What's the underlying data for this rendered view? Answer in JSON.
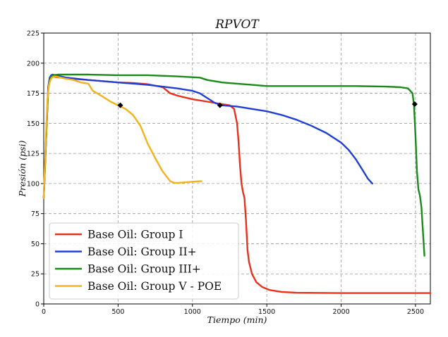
{
  "chart_data": {
    "type": "line",
    "title": "RPVOT",
    "xlabel": "Tiempo (min)",
    "ylabel": "Presión (psi)",
    "xlim": [
      0,
      2600
    ],
    "ylim": [
      0,
      225
    ],
    "x_ticks": [
      0,
      500,
      1000,
      1500,
      2000,
      2500
    ],
    "y_ticks": [
      0,
      25,
      50,
      75,
      100,
      125,
      150,
      175,
      200,
      225
    ],
    "grid": true,
    "legend_position": "lower-left",
    "series": [
      {
        "name": "Base Oil: Group I",
        "color": "#e8301c",
        "x": [
          0,
          20,
          30,
          40,
          50,
          60,
          80,
          120,
          200,
          300,
          400,
          500,
          600,
          700,
          800,
          850,
          900,
          1000,
          1100,
          1200,
          1250,
          1280,
          1300,
          1310,
          1320,
          1330,
          1340,
          1350,
          1360,
          1370,
          1380,
          1400,
          1430,
          1470,
          1520,
          1600,
          1700,
          2000,
          2300,
          2600
        ],
        "y": [
          88,
          150,
          178,
          186,
          188,
          189,
          188.5,
          188,
          187,
          186,
          185,
          184,
          183.5,
          182.5,
          180,
          175,
          173,
          170,
          168,
          166,
          165,
          162,
          150,
          135,
          115,
          100,
          93,
          88,
          70,
          45,
          35,
          25,
          18,
          14,
          11.5,
          10,
          9.3,
          9,
          9,
          9
        ]
      },
      {
        "name": "Base Oil: Group II+",
        "color": "#1f3fd4",
        "x": [
          0,
          20,
          30,
          40,
          50,
          60,
          80,
          150,
          300,
          500,
          700,
          900,
          1000,
          1050,
          1100,
          1150,
          1200,
          1300,
          1400,
          1500,
          1600,
          1700,
          1800,
          1900,
          2000,
          2050,
          2100,
          2150,
          2180,
          2210
        ],
        "y": [
          88,
          150,
          180,
          188,
          190,
          190.5,
          190,
          188,
          186,
          184,
          182,
          179,
          177,
          175,
          171,
          167,
          165,
          164,
          162,
          160,
          157,
          153,
          148,
          142,
          134,
          128,
          120,
          110,
          104,
          100
        ]
      },
      {
        "name": "Base Oil: Group III+",
        "color": "#1a8a1a",
        "x": [
          0,
          20,
          30,
          40,
          50,
          60,
          100,
          200,
          300,
          500,
          700,
          900,
          1050,
          1100,
          1200,
          1300,
          1400,
          1500,
          1700,
          1900,
          2100,
          2300,
          2400,
          2450,
          2480,
          2490,
          2500,
          2510,
          2520,
          2530,
          2540,
          2550,
          2560
        ],
        "y": [
          88,
          150,
          178,
          186,
          189,
          190,
          190.5,
          190.5,
          190.5,
          190,
          190,
          189,
          188,
          186,
          184,
          183,
          182,
          181,
          181,
          181,
          181,
          180.5,
          180,
          179,
          175,
          165,
          140,
          110,
          95,
          90,
          80,
          60,
          40
        ]
      },
      {
        "name": "Base Oil: Group V - POE",
        "color": "#f5b21a",
        "x": [
          0,
          15,
          25,
          35,
          45,
          55,
          70,
          100,
          150,
          200,
          250,
          300,
          330,
          400,
          450,
          500,
          550,
          600,
          650,
          700,
          750,
          800,
          850,
          880,
          900,
          950,
          1000,
          1060
        ],
        "y": [
          88,
          140,
          170,
          182,
          186,
          188,
          189,
          188.5,
          187,
          186,
          184,
          183,
          177,
          172,
          168,
          165,
          162,
          157,
          148,
          133,
          121,
          110,
          102,
          100.5,
          100.5,
          101,
          101.5,
          102
        ]
      }
    ],
    "markers": {
      "shape": "diamond",
      "color": "#000000",
      "points": [
        {
          "x": 515,
          "y": 165
        },
        {
          "x": 1185,
          "y": 165
        },
        {
          "x": 2495,
          "y": 166
        }
      ]
    }
  }
}
